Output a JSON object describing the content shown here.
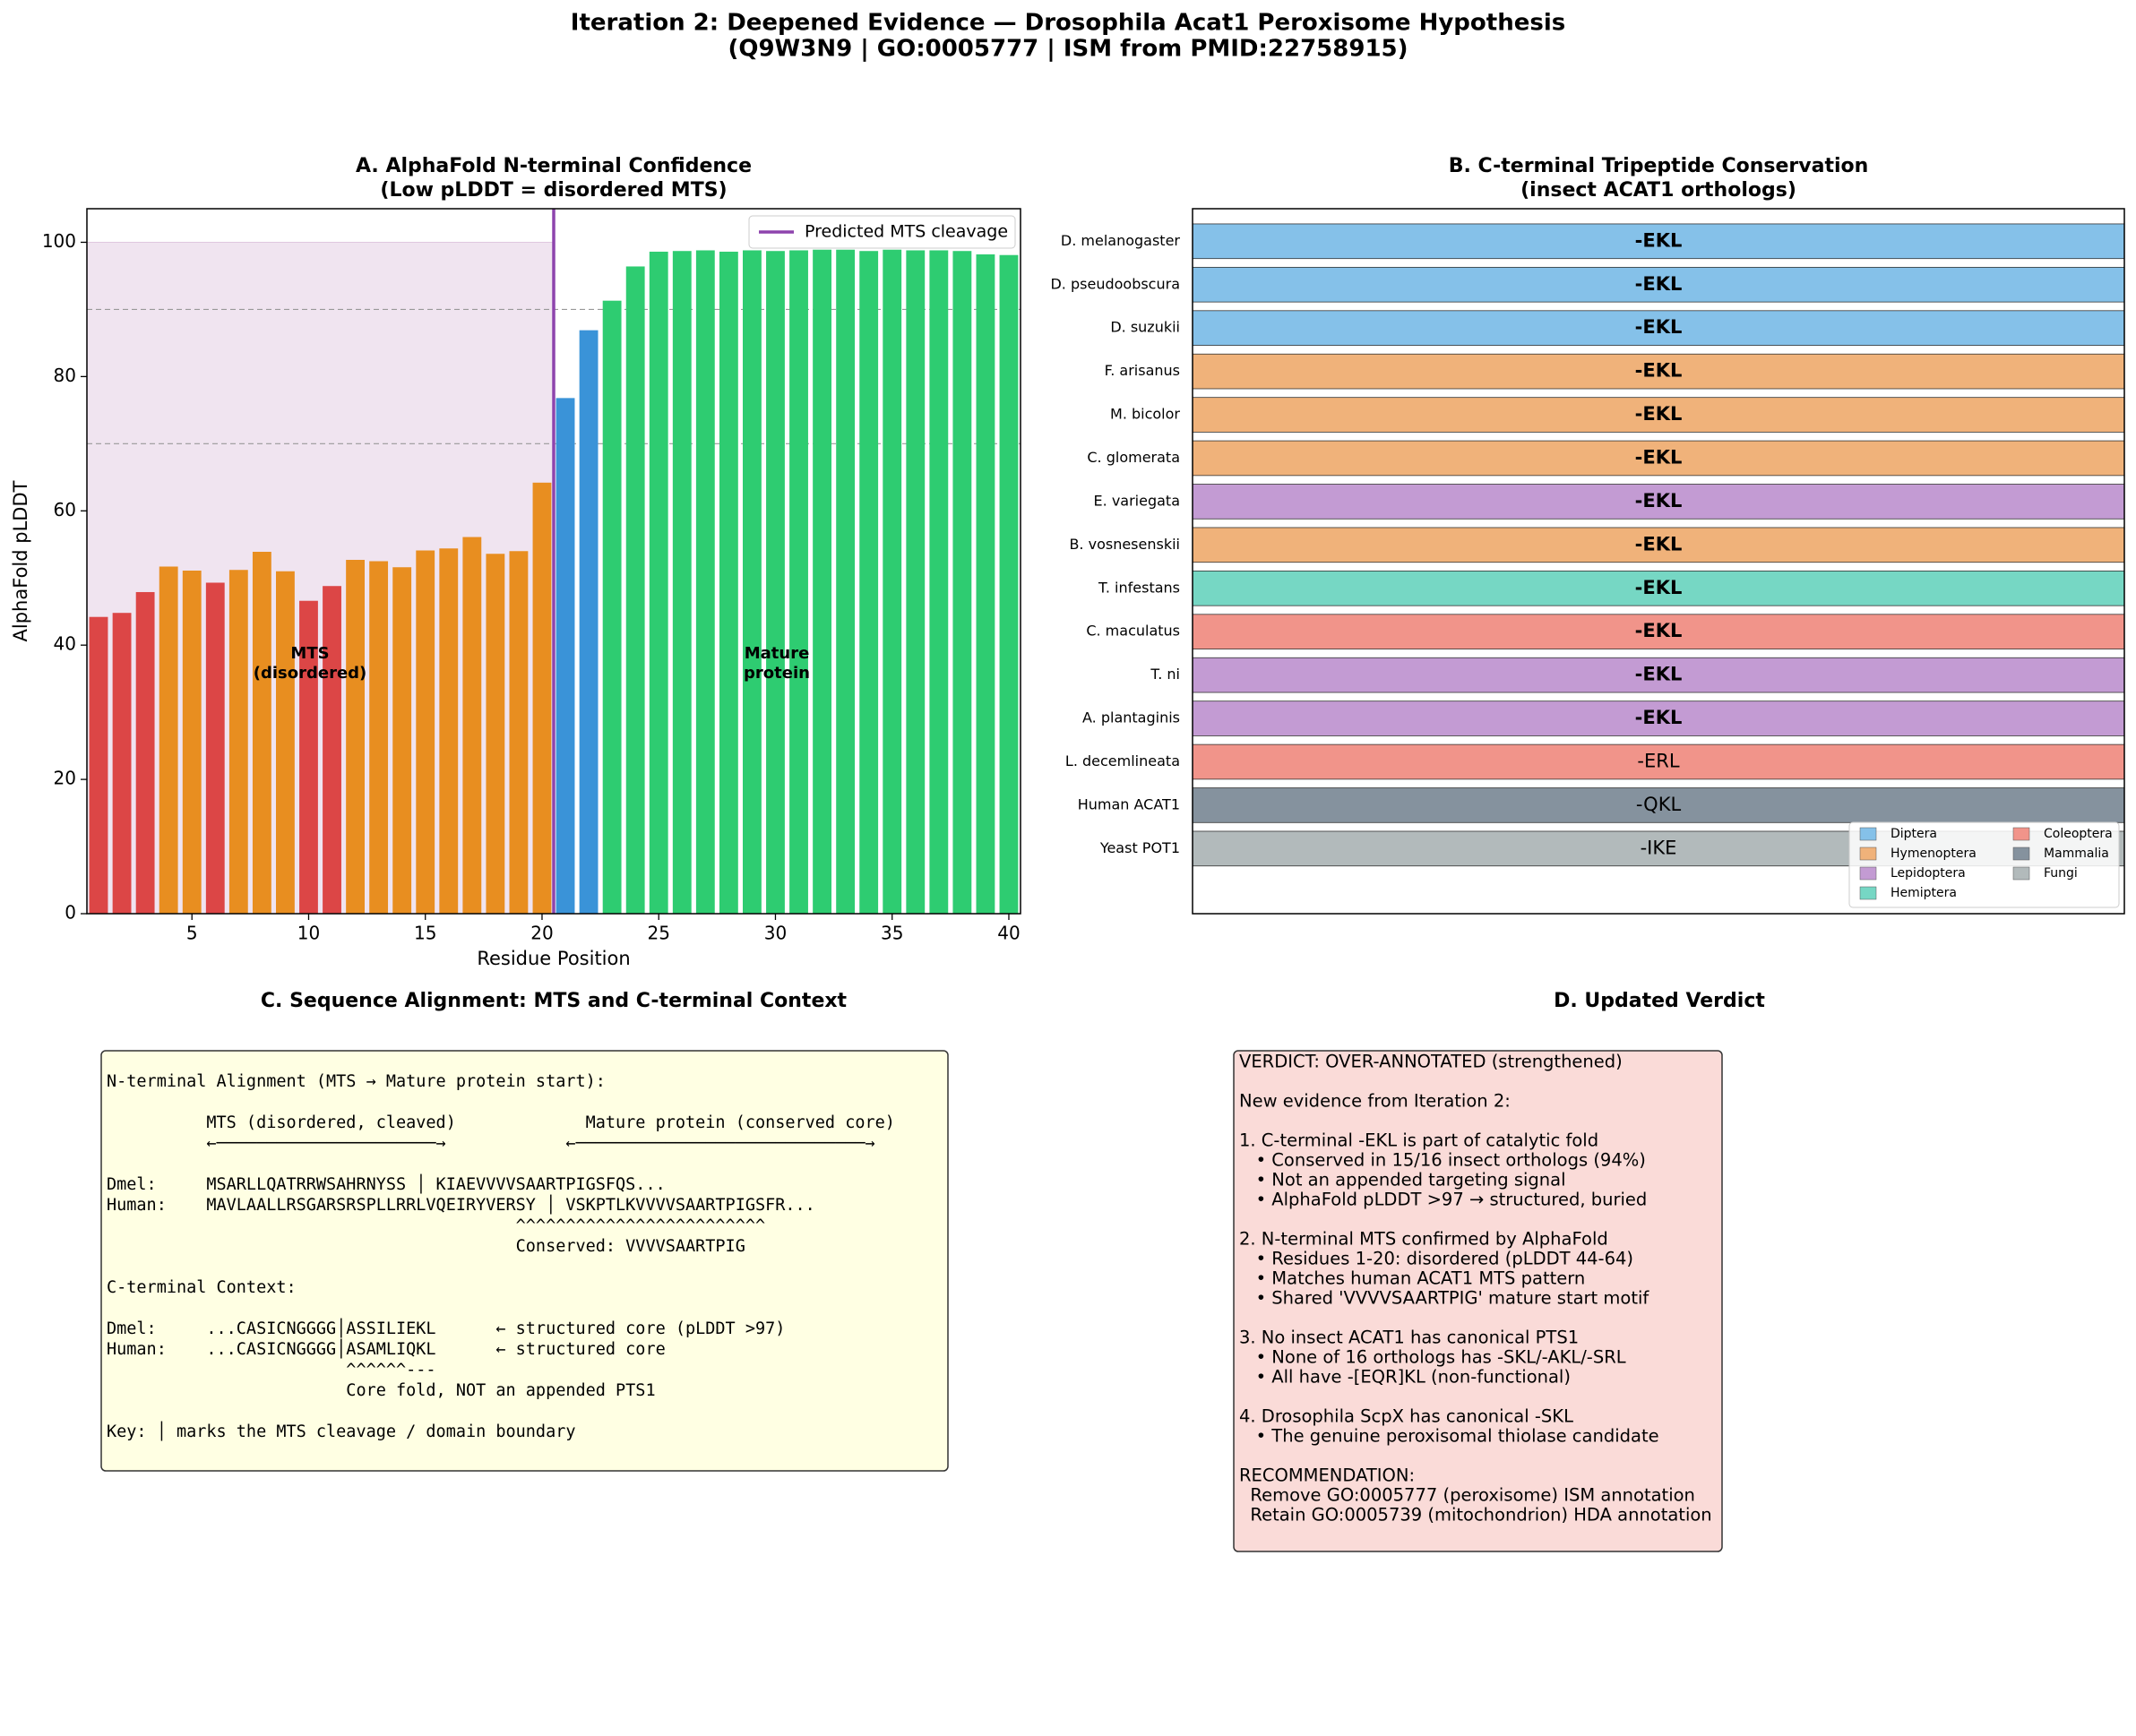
{
  "title": [
    "Iteration 2: Deepened Evidence — Drosophila Acat1 Peroxisome Hypothesis",
    "(Q9W3N9 | GO:0005777 | ISM from PMID:22758915)"
  ],
  "chart_data": [
    {
      "type": "bar",
      "title": [
        "A. AlphaFold N-terminal Confidence",
        "(Low pLDDT = disordered MTS)"
      ],
      "x_label": "Residue Position",
      "y_label": "AlphaFold pLDDT",
      "x": [
        1,
        2,
        3,
        4,
        5,
        6,
        7,
        8,
        9,
        10,
        11,
        12,
        13,
        14,
        15,
        16,
        17,
        18,
        19,
        20,
        21,
        22,
        23,
        24,
        25,
        26,
        27,
        28,
        29,
        30,
        31,
        32,
        33,
        34,
        35,
        36,
        37,
        38,
        39,
        40
      ],
      "values": [
        44.2,
        44.8,
        47.9,
        51.7,
        51.1,
        49.3,
        51.2,
        53.9,
        51.0,
        46.6,
        48.8,
        52.7,
        52.5,
        51.6,
        54.1,
        54.4,
        56.1,
        53.6,
        54.0,
        64.2,
        76.8,
        86.9,
        91.3,
        96.4,
        98.6,
        98.7,
        98.8,
        98.6,
        98.8,
        98.7,
        98.8,
        98.9,
        98.9,
        98.7,
        98.9,
        98.8,
        98.8,
        98.7,
        98.2,
        98.1
      ],
      "colors": [
        "#dc4646",
        "#dc4646",
        "#dc4646",
        "#e88e20",
        "#e88e20",
        "#dc4646",
        "#e88e20",
        "#e88e20",
        "#e88e20",
        "#dc4646",
        "#dc4646",
        "#e88e20",
        "#e88e20",
        "#e88e20",
        "#e88e20",
        "#e88e20",
        "#e88e20",
        "#e88e20",
        "#e88e20",
        "#e88e20",
        "#3a93d8",
        "#3a93d8",
        "#2ecc71",
        "#2ecc71",
        "#2ecc71",
        "#2ecc71",
        "#2ecc71",
        "#2ecc71",
        "#2ecc71",
        "#2ecc71",
        "#2ecc71",
        "#2ecc71",
        "#2ecc71",
        "#2ecc71",
        "#2ecc71",
        "#2ecc71",
        "#2ecc71",
        "#2ecc71",
        "#2ecc71",
        "#2ecc71"
      ],
      "xlim": [
        0.5,
        40.5
      ],
      "ylim": [
        0,
        105
      ],
      "xticks": [
        5,
        10,
        15,
        20,
        25,
        30,
        35,
        40
      ],
      "yticks": [
        0,
        20,
        40,
        60,
        80,
        100
      ],
      "shaded_region": {
        "x": [
          0.5,
          20.5
        ],
        "y": [
          0,
          100
        ],
        "color": "#f0e4f0"
      },
      "reference_lines": [
        70,
        90
      ],
      "cleavage": {
        "x": 20.5,
        "label": "Predicted MTS cleavage",
        "color": "#8e44ad"
      },
      "annotations": [
        {
          "lines": [
            "MTS",
            "(disordered)"
          ],
          "color": "#800080"
        },
        {
          "lines": [
            "Mature",
            "protein"
          ],
          "color": "#008000"
        }
      ]
    },
    {
      "type": "label_strip",
      "title": [
        "B. C-terminal Tripeptide Conservation",
        "(insect ACAT1 orthologs)"
      ],
      "categories": [
        "D. melanogaster",
        "D. pseudoobscura",
        "D. suzukii",
        "F. arisanus",
        "M. bicolor",
        "C. glomerata",
        "E. variegata",
        "B. vosnesenskii",
        "T. infestans",
        "C. maculatus",
        "T. ni",
        "A. plantaginis",
        "L. decemlineata",
        "Human ACAT1",
        "Yeast POT1"
      ],
      "labels": [
        "-EKL",
        "-EKL",
        "-EKL",
        "-EKL",
        "-EKL",
        "-EKL",
        "-EKL",
        "-EKL",
        "-EKL",
        "-EKL",
        "-EKL",
        "-EKL",
        "-ERL",
        "-QKL",
        "-IKE"
      ],
      "groups": [
        "Diptera",
        "Diptera",
        "Diptera",
        "Hymenoptera",
        "Hymenoptera",
        "Hymenoptera",
        "Lepidoptera",
        "Hymenoptera",
        "Hemiptera",
        "Coleoptera",
        "Lepidoptera",
        "Lepidoptera",
        "Coleoptera",
        "Mammalia",
        "Fungi"
      ],
      "label_colors": [
        "#1a6b1a",
        "#1a6b1a",
        "#1a6b1a",
        "#1a6b1a",
        "#1a6b1a",
        "#1a6b1a",
        "#1a6b1a",
        "#1a6b1a",
        "#1a6b1a",
        "#1a6b1a",
        "#1a6b1a",
        "#1a6b1a",
        "#e8251b",
        "#e8251b",
        "#e8251b"
      ],
      "label_bold": [
        true,
        true,
        true,
        true,
        true,
        true,
        true,
        true,
        true,
        true,
        true,
        true,
        false,
        false,
        false
      ],
      "legend": [
        {
          "name": "Diptera",
          "color": "#85c1e9"
        },
        {
          "name": "Hymenoptera",
          "color": "#f0b27a"
        },
        {
          "name": "Lepidoptera",
          "color": "#c39bd3"
        },
        {
          "name": "Hemiptera",
          "color": "#76d7c4"
        },
        {
          "name": "Coleoptera",
          "color": "#f1948a"
        },
        {
          "name": "Mammalia",
          "color": "#85929e"
        },
        {
          "name": "Fungi",
          "color": "#b2babb"
        }
      ],
      "legend_position": "lower right"
    }
  ],
  "panel_c": {
    "title": "C. Sequence Alignment: MTS and C-terminal Context",
    "blocks": [
      [
        "N-terminal Alignment (MTS → Mature protein start):"
      ],
      [
        "          MTS (disordered, cleaved)             Mature protein (conserved core)",
        "          ←──────────────────────→            ←─────────────────────────────→"
      ],
      [
        "Dmel:     MSARLLQATRRWSAHRNYSS │ KIAEVVVVSAARTPIGSFQS...",
        "Human:    MAVLAALLRSGARSRSPLLRRLVQEIRYVERSY │ VSKPTLKVVVVSAARTPIGSFR...",
        "                                         ^^^^^^^^^^^^^^^^^^^^^^^^^",
        "                                         Conserved: VVVVSAARTPIG"
      ],
      [
        "C-terminal Context:"
      ],
      [
        "Dmel:     ...CASICNGGGG│ASSILIEKL      ← structured core (pLDDT >97)",
        "Human:    ...CASICNGGGG│ASAMLIQKL      ← structured core",
        "                        ^^^^^^---",
        "                        Core fold, NOT an appended PTS1"
      ],
      [
        "Key: │ marks the MTS cleavage / domain boundary"
      ]
    ]
  },
  "panel_d": {
    "title": "D. Updated Verdict",
    "blocks": [
      [
        "VERDICT: OVER-ANNOTATED (strengthened)"
      ],
      [
        "New evidence from Iteration 2:"
      ],
      [
        "1. C-terminal -EKL is part of catalytic fold",
        "   • Conserved in 15/16 insect orthologs (94%)",
        "   • Not an appended targeting signal",
        "   • AlphaFold pLDDT >97 → structured, buried"
      ],
      [
        "2. N-terminal MTS confirmed by AlphaFold",
        "   • Residues 1-20: disordered (pLDDT 44-64)",
        "   • Matches human ACAT1 MTS pattern",
        "   • Shared 'VVVVSAARTPIG' mature start motif"
      ],
      [
        "3. No insect ACAT1 has canonical PTS1",
        "   • None of 16 orthologs has -SKL/-AKL/-SRL",
        "   • All have -[EQR]KL (non-functional)"
      ],
      [
        "4. Drosophila ScpX has canonical -SKL",
        "   • The genuine peroxisomal thiolase candidate"
      ],
      [
        "RECOMMENDATION:",
        "  Remove GO:0005777 (peroxisome) ISM annotation",
        "  Retain GO:0005739 (mitochondrion) HDA annotation"
      ]
    ]
  }
}
